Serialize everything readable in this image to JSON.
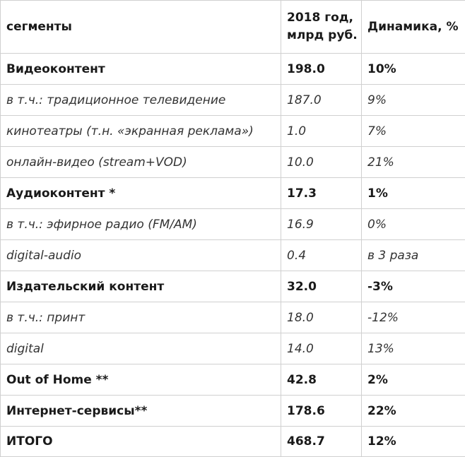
{
  "table": {
    "headers": {
      "segments": "сегменты",
      "year_line1": "2018 год,",
      "year_line2": "млрд руб.",
      "dynamics": "Динамика, %"
    },
    "rows": [
      {
        "segment": "Видеоконтент",
        "value": "198.0",
        "dynamics": "10%",
        "style": "bold"
      },
      {
        "segment": "в т.ч.: традиционное телевидение",
        "value": "187.0",
        "dynamics": "9%",
        "style": "italic"
      },
      {
        "segment": "кинотеатры (т.н. «экранная реклама»)",
        "value": "1.0",
        "dynamics": "7%",
        "style": "italic"
      },
      {
        "segment": "онлайн-видео (stream+VOD)",
        "value": "10.0",
        "dynamics": "21%",
        "style": "italic"
      },
      {
        "segment": "Аудиоконтент *",
        "value": "17.3",
        "dynamics": "1%",
        "style": "bold"
      },
      {
        "segment": "в т.ч.: эфирное радио (FM/AM)",
        "value": "16.9",
        "dynamics": "0%",
        "style": "italic"
      },
      {
        "segment": "digital-audio",
        "value": "0.4",
        "dynamics": "в 3 раза",
        "style": "italic"
      },
      {
        "segment": "Издательский контент",
        "value": "32.0",
        "dynamics": "-3%",
        "style": "bold"
      },
      {
        "segment": "в т.ч.: принт",
        "value": "18.0",
        "dynamics": "-12%",
        "style": "italic"
      },
      {
        "segment": "digital",
        "value": "14.0",
        "dynamics": "13%",
        "style": "italic"
      },
      {
        "segment": "Out of Home **",
        "value": "42.8",
        "dynamics": "2%",
        "style": "bold"
      },
      {
        "segment": "Интернет-сервисы**",
        "value": "178.6",
        "dynamics": "22%",
        "style": "bold"
      },
      {
        "segment": "ИТОГО",
        "value": "468.7",
        "dynamics": "12%",
        "style": "bold"
      }
    ]
  }
}
